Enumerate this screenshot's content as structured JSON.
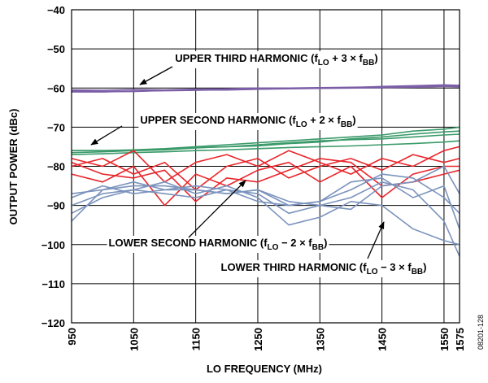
{
  "chart_data": {
    "type": "line",
    "ylabel": "OUTPUT POWER (dBc)",
    "xlabel": "LO FREQUENCY (MHz)",
    "figure_code": "08201-128",
    "x": [
      950,
      1000,
      1050,
      1100,
      1150,
      1200,
      1250,
      1300,
      1350,
      1400,
      1450,
      1500,
      1550,
      1575
    ],
    "xlim": [
      950,
      1575
    ],
    "xticks": [
      950,
      1050,
      1150,
      1250,
      1350,
      1450,
      1550,
      1575
    ],
    "ylim": [
      -120,
      -40
    ],
    "yticks": [
      {
        "value": -120,
        "label": "−120"
      },
      {
        "value": -110,
        "label": "−110"
      },
      {
        "value": -100,
        "label": "−100"
      },
      {
        "value": -90,
        "label": "−90"
      },
      {
        "value": -80,
        "label": "−80"
      },
      {
        "value": -70,
        "label": "−70"
      },
      {
        "value": -60,
        "label": "−60"
      },
      {
        "value": -50,
        "label": "−50"
      },
      {
        "value": -40,
        "label": "−40"
      }
    ],
    "grid": true,
    "series": [
      {
        "color": "#7b5ea7",
        "values": [
          -60.5,
          -60.6,
          -60.4,
          -60.5,
          -60.3,
          -60.2,
          -60.0,
          -60.0,
          -59.9,
          -59.8,
          -59.7,
          -59.6,
          -59.5,
          -59.5
        ]
      },
      {
        "color": "#7b5ea7",
        "values": [
          -61,
          -61,
          -60.8,
          -60.7,
          -60.6,
          -60.4,
          -60.3,
          -60.2,
          -60.1,
          -60,
          -59.9,
          -59.8,
          -59.6,
          -59.7
        ]
      },
      {
        "color": "#7b5ea7",
        "values": [
          -60.8,
          -60.9,
          -60.9,
          -60.6,
          -60.5,
          -60.5,
          -60.3,
          -60.1,
          -60.0,
          -59.9,
          -59.6,
          -59.4,
          -59.2,
          -59.3
        ]
      },
      {
        "color": "#3a9a6a",
        "values": [
          -76,
          -76,
          -75.8,
          -75.5,
          -75,
          -74.5,
          -74,
          -73.5,
          -73,
          -72.5,
          -72,
          -71,
          -70.5,
          -70
        ]
      },
      {
        "color": "#3a9a6a",
        "values": [
          -76.5,
          -76.3,
          -76,
          -75.8,
          -75.3,
          -75,
          -74.8,
          -74.2,
          -73.8,
          -73,
          -72.5,
          -71.8,
          -71.2,
          -71
        ]
      },
      {
        "color": "#3a9a6a",
        "values": [
          -77,
          -76.8,
          -76.5,
          -76.3,
          -76,
          -75.8,
          -75.5,
          -75.2,
          -75,
          -74.8,
          -74.5,
          -74.2,
          -73.8,
          -73.5
        ]
      },
      {
        "color": "#3a9a6a",
        "values": [
          -76,
          -76,
          -76,
          -75.7,
          -75.2,
          -75,
          -74.5,
          -74,
          -73.5,
          -73.2,
          -73,
          -72.5,
          -72,
          -71.8
        ]
      },
      {
        "color": "#e8262b",
        "values": [
          -78,
          -80,
          -76,
          -84,
          -79,
          -77,
          -80,
          -76,
          -79,
          -82,
          -78,
          -80,
          -76,
          -75
        ]
      },
      {
        "color": "#e8262b",
        "values": [
          -80,
          -78,
          -82,
          -79,
          -86,
          -80,
          -78,
          -83,
          -80,
          -78,
          -81,
          -77,
          -79,
          -78
        ]
      },
      {
        "color": "#e8262b",
        "values": [
          -82,
          -84,
          -80,
          -90,
          -82,
          -85,
          -81,
          -79,
          -84,
          -80,
          -88,
          -82,
          -80,
          -80
        ]
      },
      {
        "color": "#e8262b",
        "values": [
          -79,
          -82,
          -83,
          -81,
          -89,
          -83,
          -84,
          -81,
          -78,
          -79,
          -85,
          -84,
          -82,
          -81
        ]
      },
      {
        "color": "#7b93bd",
        "values": [
          -94,
          -86,
          -85,
          -85,
          -86,
          -87,
          -86,
          -90,
          -89,
          -86,
          -82,
          -83,
          -88,
          -92
        ]
      },
      {
        "color": "#7b93bd",
        "values": [
          -87,
          -86,
          -84,
          -86,
          -85,
          -86,
          -87,
          -92,
          -90,
          -88,
          -84,
          -86,
          -94,
          -103
        ]
      },
      {
        "color": "#7b93bd",
        "values": [
          -92,
          -88,
          -86,
          -84,
          -87,
          -85,
          -88,
          -95,
          -93,
          -89,
          -90,
          -96,
          -99,
          -100
        ]
      },
      {
        "color": "#7b93bd",
        "values": [
          -88,
          -85,
          -87,
          -86,
          -86,
          -87,
          -86,
          -89,
          -90,
          -91,
          -85,
          -84,
          -80,
          -87
        ]
      },
      {
        "color": "#7b93bd",
        "values": [
          -90,
          -87,
          -86,
          -87,
          -88,
          -86,
          -89,
          -90,
          -89,
          -84,
          -83,
          -88,
          -85,
          -96
        ]
      }
    ],
    "annotations": [
      {
        "parts": [
          "UPPER THIRD HARMONIC (f",
          "LO",
          " + 3 × f",
          "BB",
          ")"
        ]
      },
      {
        "parts": [
          "UPPER SECOND HARMONIC (f",
          "LO",
          " + 2 × f",
          "BB",
          ")"
        ]
      },
      {
        "parts": [
          "LOWER SECOND HARMONIC (f",
          "LO",
          " − 2 × f",
          "BB",
          ")"
        ]
      },
      {
        "parts": [
          "LOWER THIRD HARMONIC (f",
          "LO",
          " − 3 × f",
          "BB",
          ")"
        ]
      }
    ]
  }
}
